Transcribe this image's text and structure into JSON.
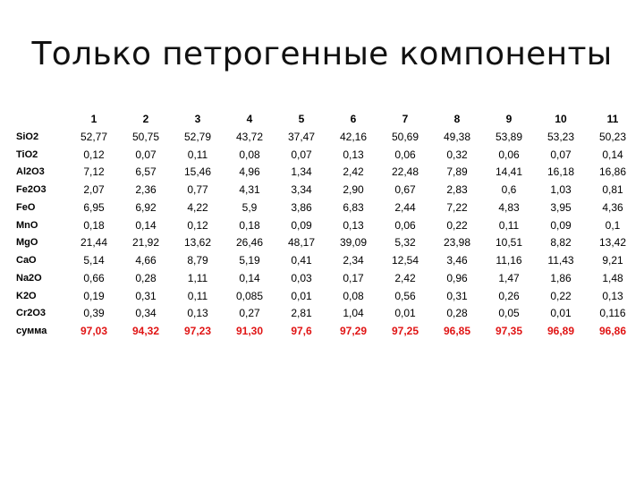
{
  "slide": {
    "title": "Только петрогенные компоненты"
  },
  "table": {
    "columns": [
      "1",
      "2",
      "3",
      "4",
      "5",
      "6",
      "7",
      "8",
      "9",
      "10",
      "11"
    ],
    "rows": [
      {
        "label": "SiO2",
        "values": [
          "52,77",
          "50,75",
          "52,79",
          "43,72",
          "37,47",
          "42,16",
          "50,69",
          "49,38",
          "53,89",
          "53,23",
          "50,23"
        ]
      },
      {
        "label": "TiO2",
        "values": [
          "0,12",
          "0,07",
          "0,11",
          "0,08",
          "0,07",
          "0,13",
          "0,06",
          "0,32",
          "0,06",
          "0,07",
          "0,14"
        ]
      },
      {
        "label": "Al2O3",
        "values": [
          "7,12",
          "6,57",
          "15,46",
          "4,96",
          "1,34",
          "2,42",
          "22,48",
          "7,89",
          "14,41",
          "16,18",
          "16,86"
        ]
      },
      {
        "label": "Fe2O3",
        "values": [
          "2,07",
          "2,36",
          "0,77",
          "4,31",
          "3,34",
          "2,90",
          "0,67",
          "2,83",
          "0,6",
          "1,03",
          "0,81"
        ]
      },
      {
        "label": "FeO",
        "values": [
          "6,95",
          "6,92",
          "4,22",
          "5,9",
          "3,86",
          "6,83",
          "2,44",
          "7,22",
          "4,83",
          "3,95",
          "4,36"
        ]
      },
      {
        "label": "MnO",
        "values": [
          "0,18",
          "0,14",
          "0,12",
          "0,18",
          "0,09",
          "0,13",
          "0,06",
          "0,22",
          "0,11",
          "0,09",
          "0,1"
        ]
      },
      {
        "label": "MgO",
        "values": [
          "21,44",
          "21,92",
          "13,62",
          "26,46",
          "48,17",
          "39,09",
          "5,32",
          "23,98",
          "10,51",
          "8,82",
          "13,42"
        ]
      },
      {
        "label": "CaO",
        "values": [
          "5,14",
          "4,66",
          "8,79",
          "5,19",
          "0,41",
          "2,34",
          "12,54",
          "3,46",
          "11,16",
          "11,43",
          "9,21"
        ]
      },
      {
        "label": "Na2O",
        "values": [
          "0,66",
          "0,28",
          "1,11",
          "0,14",
          "0,03",
          "0,17",
          "2,42",
          "0,96",
          "1,47",
          "1,86",
          "1,48"
        ]
      },
      {
        "label": "K2O",
        "values": [
          "0,19",
          "0,31",
          "0,11",
          "0,085",
          "0,01",
          "0,08",
          "0,56",
          "0,31",
          "0,26",
          "0,22",
          "0,13"
        ]
      },
      {
        "label": "Cr2O3",
        "values": [
          "0,39",
          "0,34",
          "0,13",
          "0,27",
          "2,81",
          "1,04",
          "0,01",
          "0,28",
          "0,05",
          "0,01",
          "0,116"
        ]
      }
    ],
    "total": {
      "label": "сумма",
      "values": [
        "97,03",
        "94,32",
        "97,23",
        "91,30",
        "97,6",
        "97,29",
        "97,25",
        "96,85",
        "97,35",
        "96,89",
        "96,86"
      ]
    }
  },
  "colors": {
    "total_text": "#e01414"
  }
}
